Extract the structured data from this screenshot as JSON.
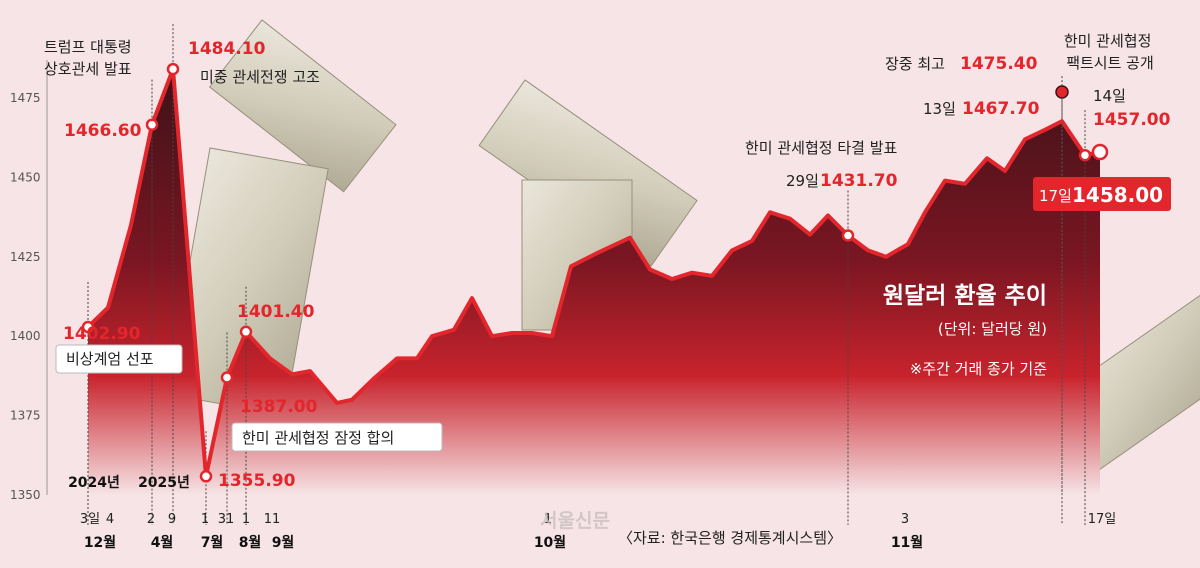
{
  "chart_data": {
    "type": "area",
    "title": "원달러 환율 추이",
    "subtitle": "(단위: 달러당 원)",
    "note": "※주간 거래 종가 기준",
    "source": "〈자료: 한국은행 경제통계시스템〉",
    "watermark": "서울신문",
    "ylim": [
      1350,
      1485
    ],
    "yticks": [
      1350,
      1375,
      1400,
      1425,
      1450,
      1475
    ],
    "series": [
      {
        "values": [
          1402.9,
          1409,
          1435,
          1466.6,
          1484.1,
          1355.9,
          1387.0,
          1401.4,
          1393,
          1388,
          1389,
          1379,
          1380,
          1387,
          1393,
          1393,
          1400,
          1402,
          1412,
          1400,
          1401,
          1401,
          1400,
          1422,
          1426,
          1431,
          1421,
          1418,
          1420,
          1419,
          1427,
          1430,
          1439,
          1437,
          1432,
          1438,
          1431.7,
          1427,
          1425,
          1429,
          1439,
          1449,
          1448,
          1456,
          1452,
          1462,
          1465,
          1467.7,
          1457.0,
          1458.0
        ]
      }
    ],
    "year_labels": [
      "2024년",
      "2025년"
    ],
    "x_ticks": [
      "3일",
      "4",
      "2",
      "9",
      "1",
      "31",
      "1",
      "11",
      "1",
      "3",
      "17일"
    ],
    "month_labels": [
      "12월",
      "4월",
      "7월",
      "8월",
      "9월",
      "10월",
      "11월"
    ],
    "annotations": [
      {
        "text": "비상계엄 선포",
        "value": "1402.90"
      },
      {
        "text": "트럼프 대통령\n상호관세 발표",
        "value": "1466.60"
      },
      {
        "text": "미중 관세전쟁 고조",
        "value": "1484.10"
      },
      {
        "text": "",
        "value": "1355.90"
      },
      {
        "text": "",
        "value": "1387.00"
      },
      {
        "text": "한미 관세협정 잠정 합의",
        "value": "1401.40"
      },
      {
        "text": "한미 관세협정 타결 발표",
        "prefix": "29일",
        "value": "1431.70"
      },
      {
        "text": "장중 최고",
        "value": "1475.40"
      },
      {
        "text": "",
        "prefix": "13일",
        "value": "1467.70"
      },
      {
        "text": "한미 관세협정\n팩트시트 공개",
        "prefix": "14일",
        "value": "1457.00"
      },
      {
        "text": "",
        "prefix": "17일",
        "value": "1458.00"
      }
    ],
    "colors": {
      "line": "#e3262b",
      "area_top": "#3d1218",
      "area_bottom": "#f6e4e6",
      "value_text": "#e3262b",
      "highlight_box": "#e3262b"
    }
  }
}
